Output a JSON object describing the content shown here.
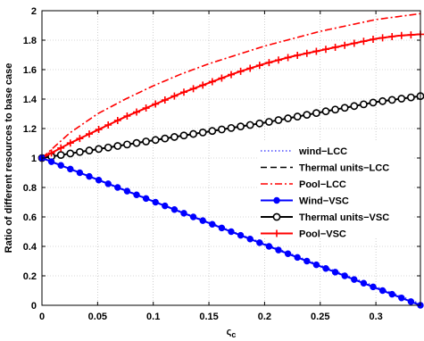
{
  "chart_data": {
    "type": "line",
    "xlabel": "ς",
    "xlabel_sub": "c",
    "ylabel": "Ratio of different resources to base case",
    "xlim": [
      0,
      0.34
    ],
    "ylim": [
      0,
      2
    ],
    "xticks": [
      0,
      0.05,
      0.1,
      0.15,
      0.2,
      0.25,
      0.3
    ],
    "xtick_labels": [
      "0",
      "0.05",
      "0.1",
      "0.15",
      "0.2",
      "0.25",
      "0.3"
    ],
    "yticks": [
      0,
      0.2,
      0.4,
      0.6,
      0.8,
      1,
      1.2,
      1.4,
      1.6,
      1.8,
      2
    ],
    "ytick_labels": [
      "0",
      "0.2",
      "0.4",
      "0.6",
      "0.8",
      "1",
      "1.2",
      "1.4",
      "1.6",
      "1.8",
      "2"
    ],
    "grid": true,
    "legend_position": "right",
    "series": [
      {
        "name": "wind−LCC",
        "color": "#4a4aff",
        "style": "dotted",
        "marker": "none",
        "x": [
          0,
          0.34
        ],
        "y": [
          1.0,
          0.01
        ]
      },
      {
        "name": "Thermal units−LCC",
        "color": "#000000",
        "style": "dashed",
        "marker": "none",
        "x": [
          0,
          0.05,
          0.1,
          0.15,
          0.2,
          0.25,
          0.3,
          0.34
        ],
        "y": [
          1.0,
          1.06,
          1.12,
          1.18,
          1.24,
          1.31,
          1.38,
          1.42
        ]
      },
      {
        "name": "Pool−LCC",
        "color": "#ff0000",
        "style": "dashdot",
        "marker": "none",
        "x": [
          0,
          0.025,
          0.05,
          0.075,
          0.1,
          0.125,
          0.15,
          0.175,
          0.2,
          0.225,
          0.25,
          0.275,
          0.3,
          0.32,
          0.34
        ],
        "y": [
          1.0,
          1.17,
          1.3,
          1.4,
          1.49,
          1.57,
          1.64,
          1.7,
          1.76,
          1.81,
          1.86,
          1.9,
          1.94,
          1.96,
          1.98
        ]
      },
      {
        "name": "Wind−VSC",
        "color": "#0000ff",
        "style": "solid",
        "marker": "circle-filled",
        "x": [
          0,
          0.34
        ],
        "y": [
          1.0,
          0.0
        ]
      },
      {
        "name": "Thermal units−VSC",
        "color": "#000000",
        "style": "solid",
        "marker": "circle-open",
        "x": [
          0,
          0.05,
          0.1,
          0.15,
          0.2,
          0.25,
          0.3,
          0.34
        ],
        "y": [
          1.0,
          1.06,
          1.12,
          1.18,
          1.24,
          1.31,
          1.38,
          1.42
        ]
      },
      {
        "name": "Pool−VSC",
        "color": "#ff0000",
        "style": "solid",
        "marker": "plus",
        "x": [
          0,
          0.025,
          0.05,
          0.075,
          0.1,
          0.125,
          0.15,
          0.175,
          0.2,
          0.225,
          0.25,
          0.275,
          0.3,
          0.32,
          0.34
        ],
        "y": [
          1.0,
          1.1,
          1.19,
          1.28,
          1.36,
          1.44,
          1.51,
          1.58,
          1.64,
          1.69,
          1.73,
          1.77,
          1.81,
          1.83,
          1.84
        ]
      }
    ]
  }
}
